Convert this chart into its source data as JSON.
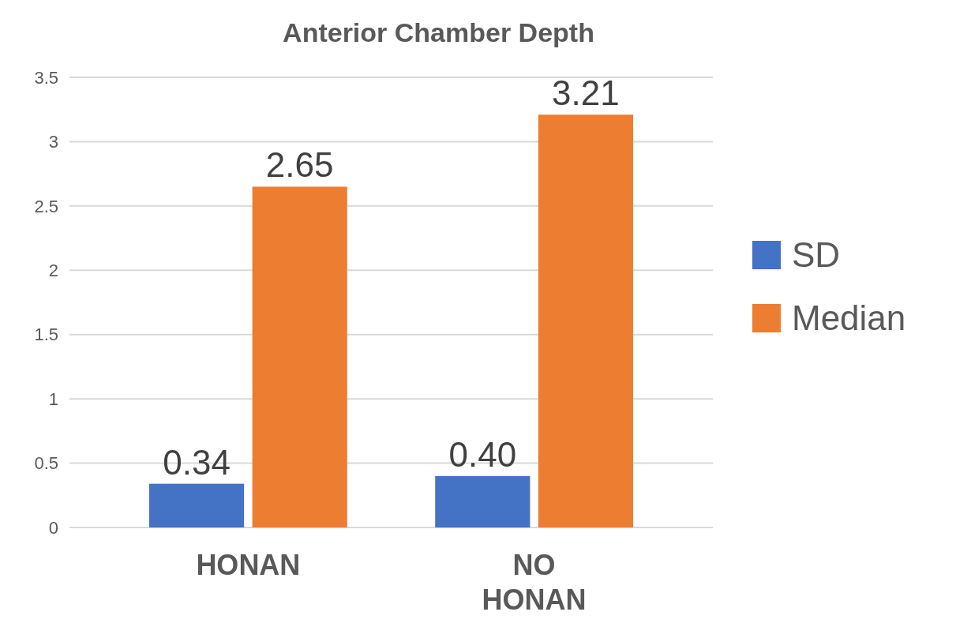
{
  "chart_data": {
    "type": "bar",
    "title": "Anterior Chamber Depth",
    "categories": [
      "HONAN",
      "NO HONAN"
    ],
    "series": [
      {
        "name": "SD",
        "color": "#4472c4",
        "values": [
          0.34,
          0.4
        ],
        "value_labels": [
          "0.34",
          "0.40"
        ]
      },
      {
        "name": "Median",
        "color": "#ed7d31",
        "values": [
          2.65,
          3.21
        ],
        "value_labels": [
          "2.65",
          "3.21"
        ]
      }
    ],
    "ylim": [
      0,
      3.5
    ],
    "yticks": [
      0,
      0.5,
      1,
      1.5,
      2,
      2.5,
      3,
      3.5
    ],
    "grid": "y",
    "legend": "right"
  }
}
